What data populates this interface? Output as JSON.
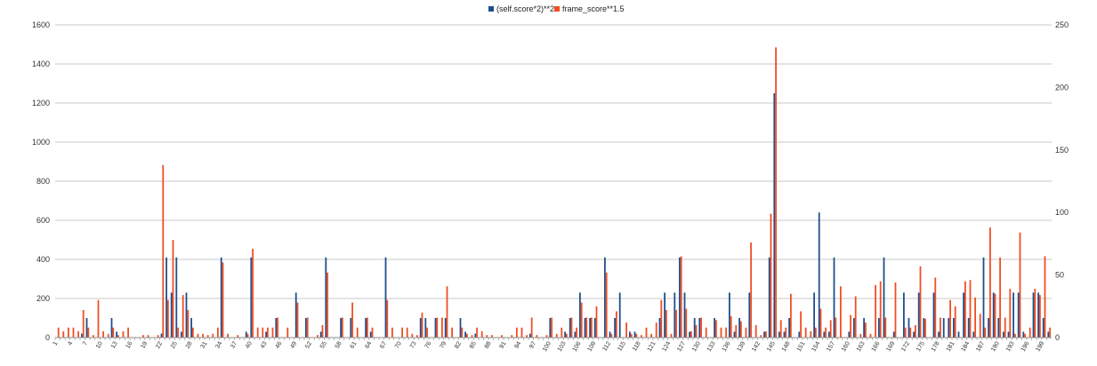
{
  "chart_data": {
    "type": "bar",
    "x_label_step": 3,
    "x": [
      1,
      2,
      3,
      4,
      5,
      6,
      7,
      8,
      9,
      10,
      11,
      12,
      13,
      14,
      15,
      16,
      17,
      18,
      19,
      20,
      21,
      22,
      23,
      24,
      25,
      26,
      27,
      28,
      29,
      30,
      31,
      32,
      33,
      34,
      35,
      36,
      37,
      38,
      39,
      40,
      41,
      42,
      43,
      44,
      45,
      46,
      47,
      48,
      49,
      50,
      51,
      52,
      53,
      54,
      55,
      56,
      57,
      58,
      59,
      60,
      61,
      62,
      63,
      64,
      65,
      66,
      67,
      68,
      69,
      70,
      71,
      72,
      73,
      74,
      75,
      76,
      77,
      78,
      79,
      80,
      81,
      82,
      83,
      84,
      85,
      86,
      87,
      88,
      89,
      90,
      91,
      92,
      93,
      94,
      95,
      96,
      97,
      98,
      99,
      100,
      101,
      102,
      103,
      104,
      105,
      106,
      107,
      108,
      109,
      110,
      111,
      112,
      113,
      114,
      115,
      116,
      117,
      118,
      119,
      120,
      121,
      122,
      123,
      124,
      125,
      126,
      127,
      128,
      129,
      130,
      131,
      132,
      133,
      134,
      135,
      136,
      137,
      138,
      139,
      140,
      141,
      142,
      143,
      144,
      145,
      146,
      147,
      148,
      149,
      150,
      151,
      152,
      153,
      154,
      155,
      156,
      157,
      158,
      159,
      160,
      161,
      162,
      163,
      164,
      165,
      166,
      167,
      168,
      169,
      170,
      171,
      172,
      173,
      174,
      175,
      176,
      177,
      178,
      179,
      180,
      181,
      182,
      183,
      184,
      185,
      186,
      187,
      188,
      189,
      190,
      191,
      192,
      193,
      194,
      195,
      196,
      197,
      198,
      199,
      200
    ],
    "series": [
      {
        "name": "(self.score*2)**2",
        "color": "#1f4e8c",
        "axis": "left",
        "values": [
          0,
          0,
          0,
          0,
          0,
          20,
          100,
          0,
          0,
          0,
          0,
          100,
          30,
          0,
          0,
          0,
          0,
          0,
          0,
          0,
          0,
          20,
          410,
          230,
          410,
          30,
          230,
          100,
          0,
          0,
          0,
          0,
          0,
          410,
          0,
          0,
          0,
          0,
          30,
          410,
          0,
          0,
          30,
          0,
          100,
          0,
          0,
          0,
          230,
          0,
          100,
          0,
          0,
          30,
          410,
          0,
          0,
          100,
          0,
          100,
          0,
          0,
          100,
          30,
          0,
          0,
          410,
          0,
          0,
          0,
          0,
          0,
          0,
          100,
          100,
          0,
          100,
          0,
          100,
          0,
          0,
          100,
          30,
          0,
          20,
          0,
          0,
          0,
          0,
          0,
          0,
          0,
          0,
          0,
          0,
          20,
          0,
          0,
          0,
          100,
          0,
          0,
          30,
          100,
          30,
          230,
          100,
          100,
          100,
          0,
          410,
          30,
          100,
          230,
          0,
          30,
          30,
          0,
          0,
          0,
          0,
          100,
          230,
          0,
          230,
          410,
          230,
          30,
          100,
          100,
          0,
          0,
          100,
          0,
          0,
          230,
          30,
          100,
          0,
          230,
          0,
          0,
          30,
          410,
          1250,
          30,
          30,
          100,
          0,
          30,
          0,
          0,
          230,
          640,
          30,
          30,
          410,
          0,
          0,
          30,
          100,
          0,
          100,
          0,
          0,
          100,
          410,
          0,
          30,
          0,
          230,
          100,
          30,
          230,
          100,
          0,
          230,
          30,
          100,
          100,
          100,
          30,
          230,
          100,
          30,
          0,
          410,
          100,
          230,
          100,
          30,
          30,
          230,
          230,
          30,
          0,
          230,
          230,
          100,
          30
        ],
        "secondary_values": []
      },
      {
        "name": "frame_score**1.5",
        "color": "#f04e23",
        "axis": "right",
        "values": [
          8,
          5,
          8,
          8,
          5,
          22,
          8,
          2,
          30,
          5,
          3,
          8,
          2,
          5,
          8,
          0,
          0,
          2,
          2,
          0,
          2,
          138,
          30,
          78,
          8,
          34,
          22,
          8,
          3,
          3,
          2,
          3,
          8,
          60,
          3,
          0,
          2,
          0,
          3,
          71,
          8,
          8,
          8,
          8,
          16,
          0,
          8,
          0,
          28,
          0,
          16,
          0,
          2,
          10,
          52,
          0,
          0,
          16,
          0,
          28,
          8,
          0,
          16,
          8,
          0,
          0,
          30,
          8,
          0,
          8,
          8,
          3,
          2,
          20,
          8,
          0,
          16,
          16,
          41,
          8,
          0,
          8,
          3,
          2,
          8,
          5,
          2,
          2,
          0,
          2,
          0,
          2,
          8,
          8,
          2,
          16,
          2,
          0,
          2,
          16,
          3,
          8,
          3,
          16,
          8,
          28,
          16,
          16,
          25,
          0,
          52,
          3,
          21,
          0,
          12,
          3,
          3,
          2,
          8,
          3,
          12,
          30,
          22,
          3,
          22,
          65,
          23,
          5,
          10,
          16,
          8,
          0,
          14,
          8,
          8,
          17,
          10,
          13,
          8,
          76,
          10,
          2,
          5,
          99,
          232,
          14,
          8,
          35,
          0,
          21,
          8,
          5,
          8,
          23,
          8,
          14,
          16,
          41,
          0,
          18,
          33,
          3,
          12,
          3,
          42,
          45,
          16,
          0,
          44,
          0,
          8,
          8,
          10,
          57,
          15,
          0,
          48,
          16,
          0,
          30,
          25,
          0,
          45,
          46,
          32,
          19,
          8,
          88,
          35,
          64,
          16,
          39,
          3,
          84,
          3,
          8,
          39,
          34,
          65,
          8
        ],
        "secondary_values": []
      }
    ],
    "left_axis": {
      "min": 0,
      "max": 1600,
      "ticks": [
        0,
        200,
        400,
        600,
        800,
        1000,
        1200,
        1400,
        1600
      ]
    },
    "right_axis": {
      "min": 0,
      "max": 250,
      "ticks": [
        0,
        50,
        100,
        150,
        200,
        250
      ]
    },
    "grid": true,
    "legend_position": "top-center",
    "title": "",
    "xlabel": "",
    "ylabel": ""
  }
}
